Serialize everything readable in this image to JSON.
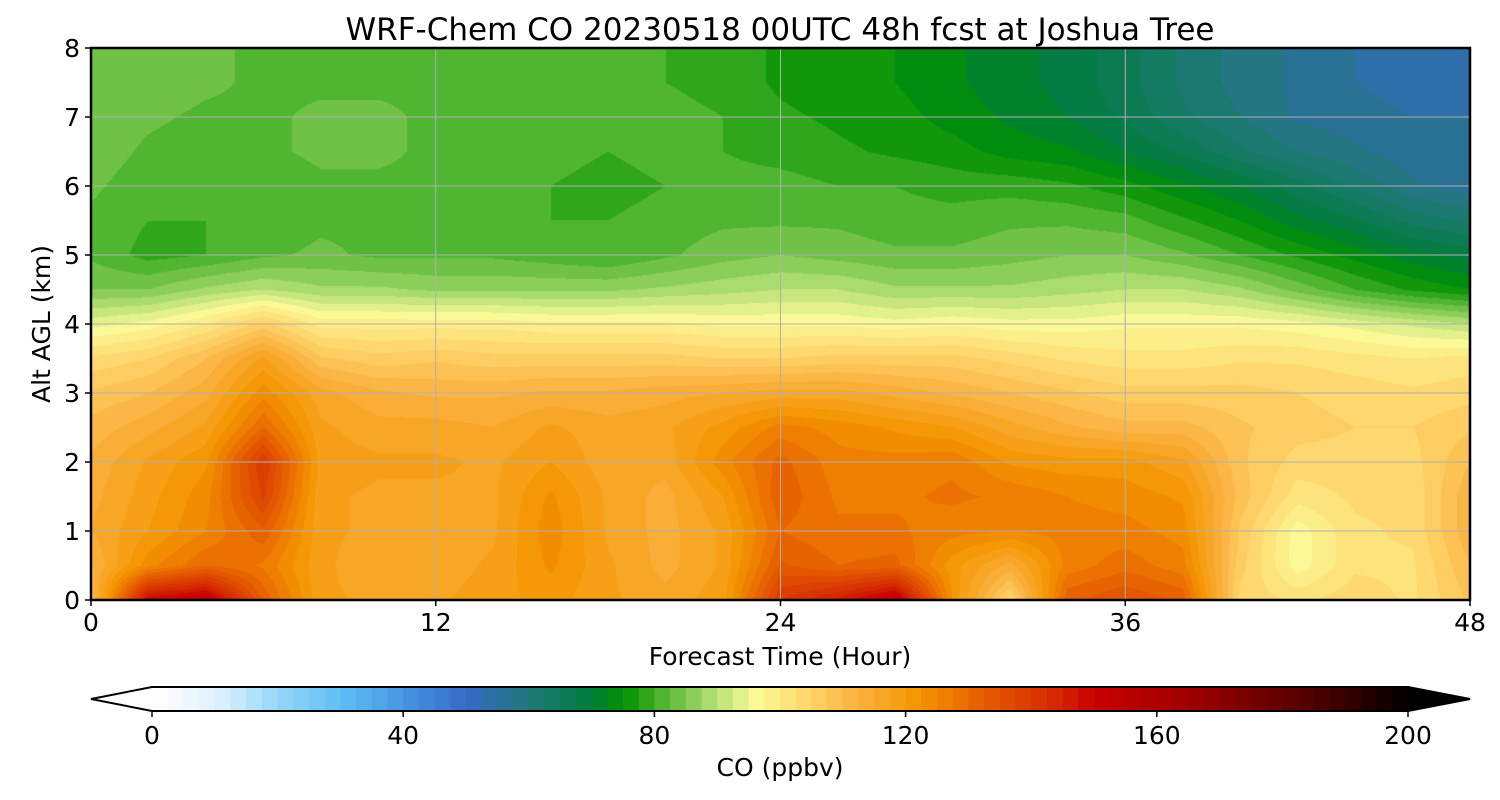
{
  "chart_data": {
    "type": "heatmap",
    "title": "WRF-Chem CO  20230518 00UTC 48h fcst at Joshua Tree",
    "xlabel": "Forecast Time (Hour)",
    "ylabel": "Alt AGL (km)",
    "xlim": [
      0,
      48
    ],
    "ylim": [
      0,
      8
    ],
    "x_ticks": [
      0,
      12,
      24,
      36,
      48
    ],
    "y_ticks": [
      0,
      1,
      2,
      3,
      4,
      5,
      6,
      7,
      8
    ],
    "grid": true,
    "colorbar": {
      "label": "CO  (ppbv)",
      "range": [
        0,
        200
      ],
      "ticks": [
        0,
        40,
        80,
        120,
        160,
        200
      ],
      "extend": "both",
      "placement": "bottom"
    },
    "x_hours": [
      0,
      2,
      4,
      6,
      8,
      10,
      12,
      14,
      16,
      18,
      20,
      22,
      24,
      26,
      28,
      30,
      32,
      34,
      36,
      38,
      40,
      42,
      44,
      46,
      48
    ],
    "altitudes_km": [
      0,
      0.5,
      1,
      1.5,
      2,
      2.5,
      3,
      3.5,
      4,
      4.5,
      5,
      5.5,
      6,
      6.5,
      7,
      7.5,
      8
    ],
    "co_ppbv": [
      [
        110,
        150,
        154,
        132,
        118,
        117,
        117,
        119,
        121,
        118,
        116,
        119,
        140,
        146,
        154,
        122,
        104,
        132,
        135,
        132,
        104,
        102,
        104,
        102,
        108
      ],
      [
        112,
        124,
        130,
        127,
        118,
        116,
        116,
        118,
        123,
        118,
        114,
        118,
        133,
        130,
        131,
        121,
        114,
        126,
        129,
        126,
        106,
        96,
        102,
        102,
        110
      ],
      [
        115,
        120,
        125,
        132,
        118,
        117,
        116,
        117,
        124,
        117,
        114,
        118,
        130,
        128,
        128,
        126,
        125,
        126,
        126,
        124,
        107,
        96,
        102,
        103,
        112
      ],
      [
        114,
        119,
        124,
        138,
        118,
        117,
        117,
        117,
        123,
        117,
        114,
        120,
        132,
        127,
        127,
        128,
        127,
        125,
        124,
        122,
        109,
        101,
        103,
        103,
        112
      ],
      [
        113,
        118,
        122,
        140,
        119,
        118,
        118,
        117,
        120,
        116,
        116,
        124,
        131,
        126,
        126,
        127,
        122,
        121,
        121,
        118,
        108,
        104,
        104,
        104,
        110
      ],
      [
        111,
        114,
        118,
        130,
        118,
        116,
        116,
        115,
        118,
        116,
        117,
        121,
        126,
        124,
        122,
        120,
        116,
        113,
        111,
        111,
        108,
        106,
        105,
        105,
        107
      ],
      [
        108,
        110,
        114,
        124,
        116,
        113,
        112,
        112,
        113,
        113,
        114,
        115,
        116,
        116,
        114,
        112,
        110,
        108,
        106,
        106,
        106,
        105,
        104,
        103,
        104
      ],
      [
        103,
        105,
        110,
        118,
        108,
        106,
        107,
        106,
        106,
        106,
        106,
        105,
        105,
        106,
        106,
        106,
        104,
        102,
        101,
        101,
        102,
        102,
        101,
        100,
        101
      ],
      [
        94,
        96,
        100,
        106,
        99,
        99,
        99,
        99,
        98,
        98,
        98,
        97,
        97,
        97,
        96,
        97,
        96,
        96,
        97,
        97,
        97,
        96,
        94,
        92,
        90
      ],
      [
        85,
        85,
        88,
        90,
        88,
        88,
        87,
        87,
        87,
        87,
        88,
        89,
        90,
        90,
        88,
        88,
        88,
        89,
        90,
        90,
        88,
        84,
        80,
        77,
        75
      ],
      [
        82,
        79,
        80,
        82,
        83,
        82,
        82,
        82,
        81,
        80,
        82,
        84,
        85,
        84,
        83,
        83,
        84,
        85,
        85,
        83,
        80,
        77,
        74,
        71,
        69
      ],
      [
        82,
        80,
        80,
        81,
        82,
        82,
        82,
        81,
        80,
        80,
        81,
        82,
        82,
        82,
        81,
        81,
        82,
        82,
        81,
        78,
        75,
        71,
        68,
        64,
        62
      ],
      [
        83,
        81,
        80,
        81,
        82,
        82,
        82,
        81,
        80,
        79,
        80,
        81,
        81,
        80,
        80,
        79,
        79,
        78,
        76,
        73,
        70,
        66,
        62,
        58,
        56
      ],
      [
        84,
        82,
        81,
        82,
        83,
        83,
        82,
        82,
        81,
        80,
        81,
        80,
        79,
        78,
        77,
        76,
        74,
        73,
        70,
        67,
        63,
        60,
        58,
        56,
        55
      ],
      [
        84,
        83,
        82,
        82,
        83,
        83,
        82,
        82,
        81,
        80,
        81,
        80,
        78,
        77,
        76,
        74,
        72,
        70,
        67,
        63,
        60,
        57,
        56,
        55,
        55
      ],
      [
        84,
        84,
        83,
        82,
        82,
        82,
        82,
        81,
        81,
        80,
        80,
        79,
        77,
        76,
        75,
        73,
        71,
        69,
        66,
        62,
        59,
        57,
        55,
        54,
        54
      ],
      [
        84,
        84,
        83,
        82,
        82,
        82,
        82,
        81,
        81,
        80,
        80,
        79,
        77,
        76,
        75,
        73,
        71,
        69,
        66,
        62,
        59,
        57,
        55,
        54,
        54
      ]
    ]
  }
}
